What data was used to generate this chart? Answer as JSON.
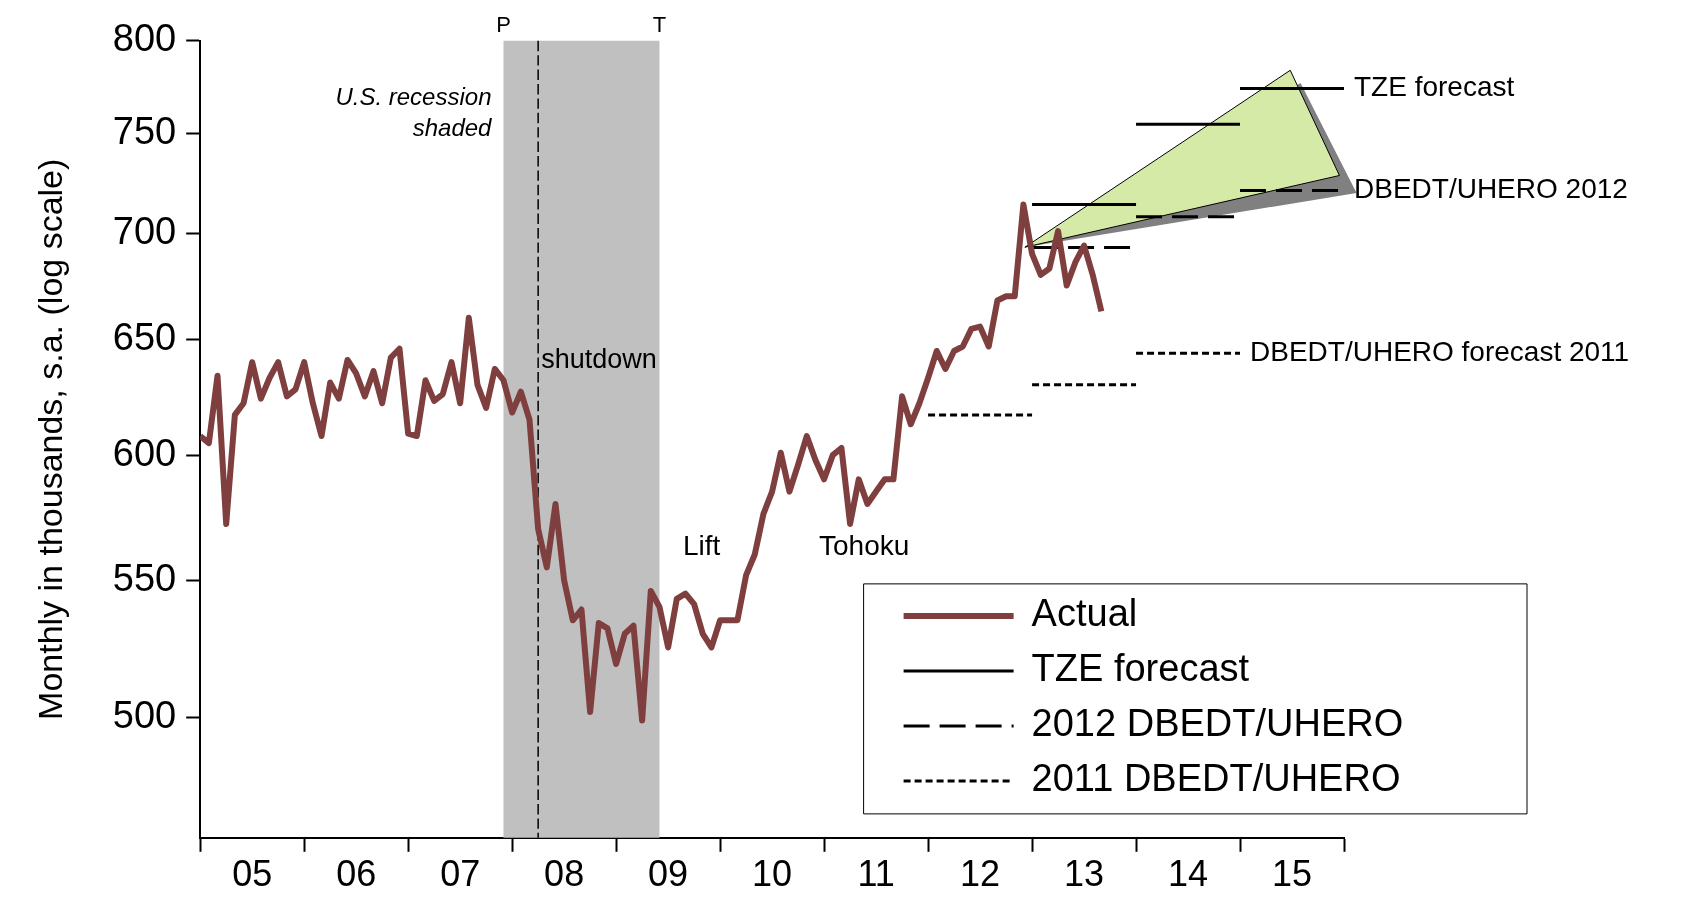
{
  "chart_data": {
    "type": "line",
    "ylabel": "Monthly in thousands, s.a. (log scale)",
    "log": "y",
    "grid": false,
    "legend": "bottom right",
    "marker": "none",
    "xlim": [
      "2005",
      "2016"
    ],
    "xticks": [
      {
        "value": "2005",
        "label": null
      },
      {
        "value": "2005-07",
        "label": "05"
      },
      {
        "value": "2006",
        "label": null
      },
      {
        "value": "2006-07",
        "label": "06"
      },
      {
        "value": "2007",
        "label": null
      },
      {
        "value": "2007-07",
        "label": "07"
      },
      {
        "value": "2008",
        "label": null
      },
      {
        "value": "2008-07",
        "label": "08"
      },
      {
        "value": "2009",
        "label": null
      },
      {
        "value": "2009-07",
        "label": "09"
      },
      {
        "value": "2010",
        "label": null
      },
      {
        "value": "2010-07",
        "label": "10"
      },
      {
        "value": "2011",
        "label": null
      },
      {
        "value": "2011-07",
        "label": "11"
      },
      {
        "value": "2012",
        "label": null
      },
      {
        "value": "2012-07",
        "label": "12"
      },
      {
        "value": "2013",
        "label": null
      },
      {
        "value": "2013-07",
        "label": "13"
      },
      {
        "value": "2014",
        "label": null
      },
      {
        "value": "2014-07",
        "label": "14"
      },
      {
        "value": "2015",
        "label": null
      },
      {
        "value": "2015-07",
        "label": "15"
      },
      {
        "value": "2016",
        "label": null
      }
    ],
    "ylim": [
      460,
      800
    ],
    "yticks": [
      500,
      550,
      600,
      650,
      700,
      750,
      800
    ],
    "series": [
      {
        "name": "Actual",
        "color": "#7f3f3f",
        "line_style": "solid",
        "x": [
          "2005-01",
          "2005-02",
          "2005-03",
          "2005-04",
          "2005-05",
          "2005-06",
          "2005-07",
          "2005-08",
          "2005-09",
          "2005-10",
          "2005-11",
          "2005-12",
          "2006-01",
          "2006-02",
          "2006-03",
          "2006-04",
          "2006-05",
          "2006-06",
          "2006-07",
          "2006-08",
          "2006-09",
          "2006-10",
          "2006-11",
          "2006-12",
          "2007-01",
          "2007-02",
          "2007-03",
          "2007-04",
          "2007-05",
          "2007-06",
          "2007-07",
          "2007-08",
          "2007-09",
          "2007-10",
          "2007-11",
          "2007-12",
          "2008-01",
          "2008-02",
          "2008-03",
          "2008-04",
          "2008-05",
          "2008-06",
          "2008-07",
          "2008-08",
          "2008-09",
          "2008-10",
          "2008-11",
          "2008-12",
          "2009-01",
          "2009-02",
          "2009-03",
          "2009-04",
          "2009-05",
          "2009-06",
          "2009-07",
          "2009-08",
          "2009-09",
          "2009-10",
          "2009-11",
          "2009-12",
          "2010-01",
          "2010-02",
          "2010-03",
          "2010-04",
          "2010-05",
          "2010-06",
          "2010-07",
          "2010-08",
          "2010-09",
          "2010-10",
          "2010-11",
          "2010-12",
          "2011-01",
          "2011-02",
          "2011-03",
          "2011-04",
          "2011-05",
          "2011-06",
          "2011-07",
          "2011-08",
          "2011-09",
          "2011-10",
          "2011-11",
          "2011-12",
          "2012-01",
          "2012-02",
          "2012-03",
          "2012-04",
          "2012-05",
          "2012-06",
          "2012-07",
          "2012-08",
          "2012-09",
          "2012-10",
          "2012-11",
          "2012-12",
          "2013-01",
          "2013-02",
          "2013-03",
          "2013-04",
          "2013-05",
          "2013-06",
          "2013-07",
          "2013-08",
          "2013-09"
        ],
        "values": [
          608,
          605,
          634,
          572,
          617,
          622,
          640,
          624,
          633,
          640,
          625,
          628,
          640,
          622,
          608,
          631,
          624,
          641,
          635,
          625,
          636,
          622,
          642,
          646,
          609,
          608,
          632,
          623,
          626,
          640,
          622,
          660,
          630,
          620,
          637,
          632,
          618,
          627,
          615,
          570,
          555,
          580,
          550,
          535,
          539,
          502,
          534,
          532,
          519,
          530,
          533,
          499,
          546,
          540,
          525,
          543,
          545,
          541,
          530,
          525,
          535,
          535,
          535,
          552,
          560,
          576,
          585,
          601,
          585,
          596,
          608,
          598,
          590,
          600,
          603,
          572,
          590,
          580,
          585,
          590,
          590,
          625,
          613,
          622,
          633,
          645,
          637,
          645,
          647,
          655,
          656,
          647,
          668,
          670,
          670,
          714,
          690,
          680,
          683,
          701,
          675,
          686,
          694,
          680,
          663
        ]
      },
      {
        "name": "TZE forecast",
        "color": "#000000",
        "line_style": "solid",
        "x": [
          "2013",
          "2014",
          "2014",
          "2015",
          "2015",
          "2016"
        ],
        "values": [
          714,
          714,
          755,
          755,
          774,
          774
        ]
      },
      {
        "name": "2012 DBEDT/UHERO",
        "color": "#000000",
        "line_style": "dashed",
        "x": [
          "2013",
          "2014",
          "2014",
          "2015",
          "2015",
          "2016"
        ],
        "values": [
          693,
          693,
          708,
          708,
          721,
          721
        ]
      },
      {
        "name": "2011 DBEDT/UHERO",
        "color": "#000000",
        "line_style": "dotted",
        "x": [
          "2012",
          "2013",
          "2013",
          "2014",
          "2014",
          "2015"
        ],
        "values": [
          617,
          617,
          630,
          630,
          644,
          644
        ]
      }
    ],
    "bands": [
      {
        "axis": "x",
        "from": "2007-12",
        "to": "2009-06",
        "color": "#c0c0c0"
      }
    ],
    "ref_lines": [
      {
        "axis": "x",
        "value": "2008-04",
        "label": "shutdown",
        "line_style": "dashed",
        "color": "#000000"
      }
    ],
    "annotations": [
      "U.S. recession shaded",
      {
        "text": "P",
        "x": "2007-12",
        "y": 800
      },
      {
        "text": "T",
        "x": "2009-06",
        "y": 800
      },
      "Lift",
      "Tohoku",
      {
        "text": "TZE forecast",
        "x": "2016",
        "y": 774
      },
      {
        "text": "DBEDT/UHERO 2012",
        "x": "2016",
        "y": 721
      },
      {
        "text": "DBEDT/UHERO forecast 2011",
        "x": "2015",
        "y": 644
      }
    ]
  }
}
